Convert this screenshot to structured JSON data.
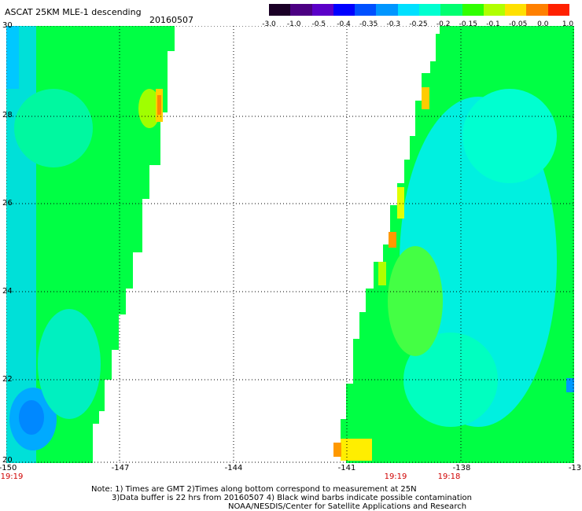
{
  "header": {
    "title": "ASCAT 25KM MLE-1 descending",
    "date": "20160507"
  },
  "colorbar": {
    "labels": [
      "-3.0",
      "-1.0",
      "-0.5",
      "-0.4",
      "-0.35",
      "-0.3",
      "-0.25",
      "-0.2",
      "-0.15",
      "-0.1",
      "-0.05",
      "0.0",
      "1.0"
    ],
    "colors": [
      "#1a0026",
      "#4b0082",
      "#5a00c8",
      "#0000ff",
      "#0050ff",
      "#0096ff",
      "#00e0ff",
      "#00ffd0",
      "#00ff70",
      "#30ff00",
      "#b0ff00",
      "#ffe000",
      "#ff8000",
      "#ff2000"
    ]
  },
  "map": {
    "lat_labels": [
      "30",
      "28",
      "26",
      "24",
      "22",
      "20"
    ],
    "lon_labels": [
      "-150",
      "-147",
      "-144",
      "-141",
      "-138",
      "-13"
    ],
    "time_labels": [
      "19:19",
      "19:19",
      "19:18"
    ],
    "colors": {
      "cyan": "#00ffff",
      "aqua": "#00f0e0",
      "green": "#00ff00",
      "lightgreen": "#44ff44",
      "yellowgreen": "#a0ff00",
      "yellow": "#ffff00",
      "orange": "#ff9900",
      "blue": "#0099ff",
      "grid": "#000000"
    }
  },
  "notes": {
    "line1": "Note: 1) Times are GMT 2)Times along bottom correspond to measurement at 25N",
    "line2": "3)Data buffer is 22 hrs from 20160507 4) Black wind barbs indicate possible contamination",
    "line3": "NOAA/NESDIS/Center for Satellite Applications and Research"
  }
}
